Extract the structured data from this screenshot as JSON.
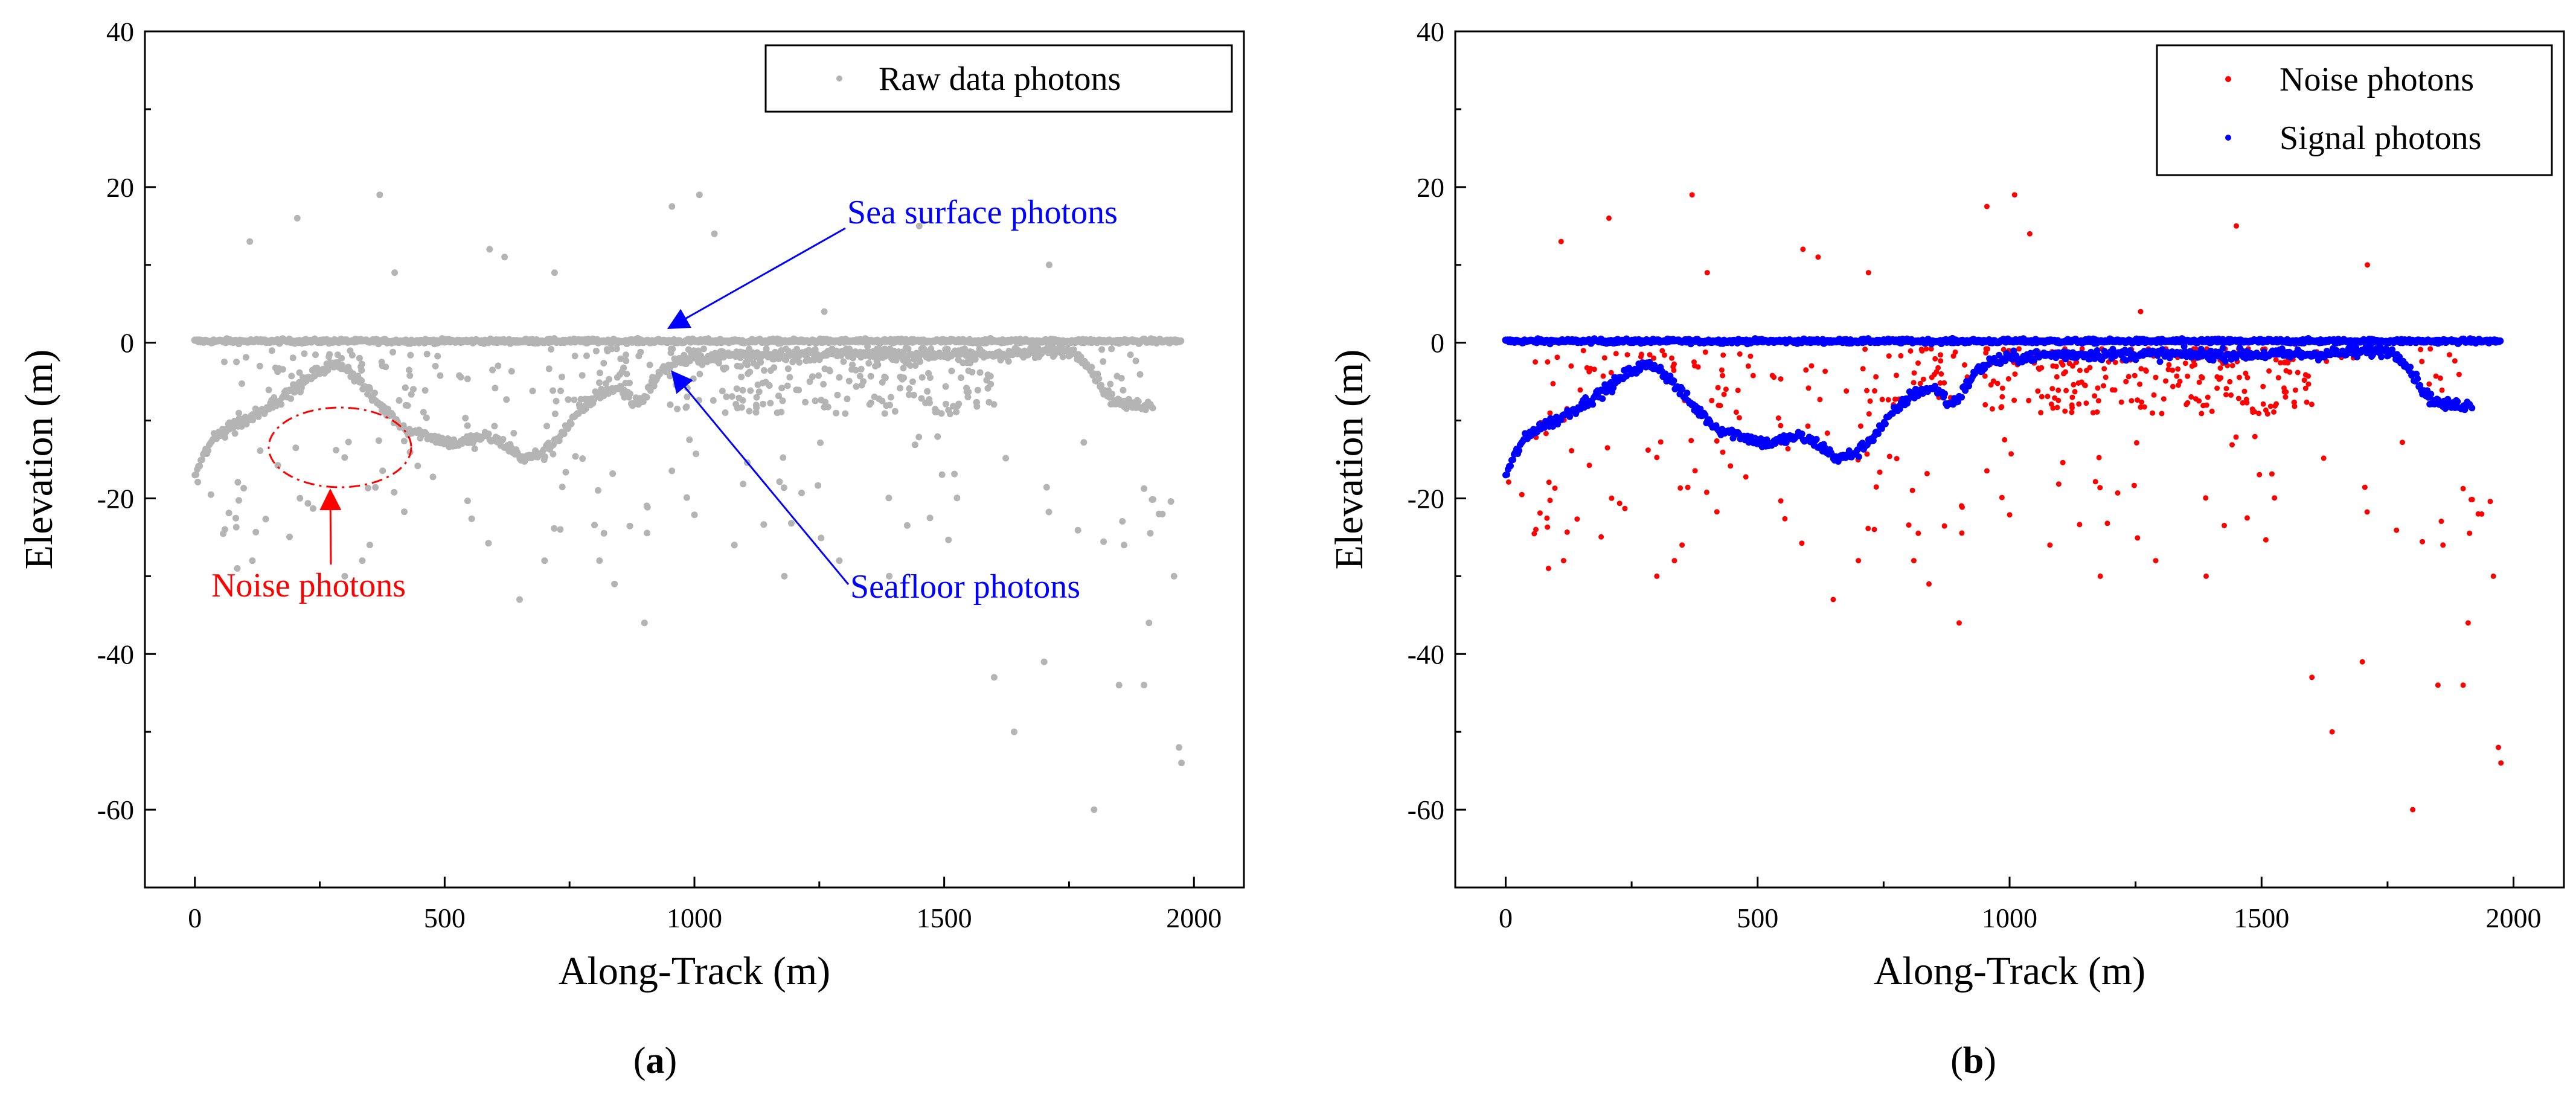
{
  "chart_data": [
    {
      "type": "scatter",
      "panel_label": "(a)",
      "panel_letter": "a",
      "title": "",
      "xlabel": "Along-Track (m)",
      "ylabel": "Elevation (m)",
      "xlim": [
        -100,
        2100
      ],
      "ylim": [
        -70,
        40
      ],
      "xticks": [
        0,
        500,
        1000,
        1500,
        2000
      ],
      "yticks": [
        40,
        20,
        0,
        -20,
        -40,
        -60
      ],
      "grid": false,
      "legend_position": "top-right",
      "series": [
        {
          "name": "Raw data photons",
          "color": "#b4b4b4",
          "profile": "raw"
        }
      ],
      "annotations": [
        {
          "text": "Sea surface photons",
          "color": "#0000ff",
          "target": [
            930,
            1
          ]
        },
        {
          "text": "Seafloor photons",
          "color": "#0000ff",
          "target": [
            950,
            -4
          ]
        },
        {
          "text": "Noise photons",
          "color": "#ff0000",
          "target": [
            265,
            -18
          ]
        }
      ],
      "noise_ellipse": {
        "cx": 245,
        "cy": -13.5,
        "rx": 140,
        "ry": 4.5,
        "color": "#ff0000"
      }
    },
    {
      "type": "scatter",
      "panel_label": "(b)",
      "panel_letter": "b",
      "title": "",
      "xlabel": "Along-Track (m)",
      "ylabel": "Elevation (m)",
      "xlim": [
        -100,
        2100
      ],
      "ylim": [
        -70,
        40
      ],
      "xticks": [
        0,
        500,
        1000,
        1500,
        2000
      ],
      "yticks": [
        40,
        20,
        0,
        -20,
        -40,
        -60
      ],
      "grid": false,
      "legend_position": "top-right",
      "series": [
        {
          "name": "Noise photons",
          "color": "#ff0000",
          "profile": "noise"
        },
        {
          "name": "Signal photons",
          "color": "#0000ff",
          "profile": "signal"
        }
      ]
    }
  ],
  "seafloor_profile": {
    "x": [
      0,
      30,
      60,
      100,
      150,
      200,
      240,
      270,
      300,
      330,
      370,
      420,
      470,
      520,
      580,
      620,
      660,
      700,
      730,
      770,
      800,
      830,
      860,
      880,
      900,
      930,
      960,
      1000,
      1050,
      1100,
      1200,
      1300,
      1400,
      1500,
      1600,
      1700,
      1750,
      1780,
      1800,
      1830,
      1860,
      1890,
      1920
    ],
    "elev": [
      -17,
      -13,
      -11,
      -10,
      -8,
      -6,
      -4,
      -3,
      -3,
      -5,
      -8,
      -11,
      -12,
      -13,
      -12,
      -13,
      -15,
      -14,
      -12,
      -9,
      -7,
      -6,
      -6,
      -8,
      -7,
      -4,
      -2.5,
      -2,
      -1.7,
      -1.5,
      -1.5,
      -1.5,
      -1.5,
      -1.5,
      -1.5,
      -1.2,
      -1,
      -2,
      -4,
      -7,
      -8,
      -8,
      -8
    ]
  },
  "surface_elevation": 0.2,
  "outlier_points": [
    [
      60,
      -24
    ],
    [
      85,
      -29
    ],
    [
      110,
      13
    ],
    [
      115,
      -28
    ],
    [
      205,
      16
    ],
    [
      300,
      -30
    ],
    [
      335,
      -28
    ],
    [
      370,
      19
    ],
    [
      590,
      12
    ],
    [
      620,
      11
    ],
    [
      650,
      -33
    ],
    [
      720,
      9
    ],
    [
      810,
      -28
    ],
    [
      840,
      -31
    ],
    [
      900,
      -36
    ],
    [
      955,
      17.5
    ],
    [
      1010,
      19
    ],
    [
      1040,
      14
    ],
    [
      1080,
      -26
    ],
    [
      1180,
      -30
    ],
    [
      1260,
      4
    ],
    [
      1290,
      -28
    ],
    [
      1390,
      -30
    ],
    [
      1450,
      15
    ],
    [
      1600,
      -43
    ],
    [
      1640,
      -50
    ],
    [
      1700,
      -41
    ],
    [
      1710,
      10
    ],
    [
      1800,
      -60
    ],
    [
      1850,
      -44
    ],
    [
      1860,
      -26
    ],
    [
      1900,
      -44
    ],
    [
      1910,
      -36
    ],
    [
      1930,
      -22
    ],
    [
      1960,
      -30
    ],
    [
      1970,
      -52
    ],
    [
      1975,
      -54
    ],
    [
      130,
      -3
    ],
    [
      400,
      9
    ],
    [
      700,
      -28
    ]
  ]
}
